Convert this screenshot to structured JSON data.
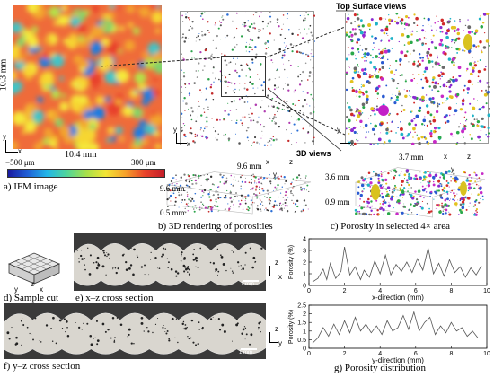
{
  "panels": {
    "a": {
      "caption": "a) IFM image",
      "dim_x": "10.4 mm",
      "dim_y": "10.3 mm",
      "scale_min": "−500 μm",
      "scale_max": "300 μm",
      "axis_x": "x",
      "axis_y": "y",
      "colorbar_colors": [
        "#1a1aa0",
        "#1f5fd6",
        "#22b7e8",
        "#4fd59a",
        "#a6e04a",
        "#f3e534",
        "#f6a12a",
        "#e9432a",
        "#c41d2a"
      ]
    },
    "b": {
      "caption": "b) 3D rendering of porosities",
      "dim_width": "9.6 mm",
      "dim_depth": "9.6 mm",
      "dim_height": "0.5 mm",
      "axis_x": "x",
      "axis_y": "y",
      "axis_z": "z"
    },
    "c": {
      "caption": "c) Porosity in selected 4× area",
      "dim_width": "3.7 mm",
      "dim_depth": "3.6 mm",
      "dim_height": "0.9 mm",
      "axis_x": "x",
      "axis_y": "y",
      "axis_z": "z"
    },
    "top_label": "Top Surface views",
    "views_label": "3D views",
    "d": {
      "caption": "d) Sample cut",
      "axis_x": "x",
      "axis_y": "y",
      "axis_z": "z"
    },
    "e": {
      "caption": "e) x–z cross section",
      "scale_bar": "1 mm",
      "axis_x": "x",
      "axis_z": "z"
    },
    "f": {
      "caption": "f) y–z cross section",
      "scale_bar": "1 mm",
      "axis_y": "y",
      "axis_z": "z"
    },
    "g": {
      "caption": "g) Porosity distribution"
    }
  },
  "chart_data": [
    {
      "type": "line",
      "xlabel": "x-direction (mm)",
      "ylabel": "Porosity (%)",
      "xlim": [
        0,
        10
      ],
      "ylim": [
        0,
        4
      ],
      "xticks": [
        0,
        2,
        4,
        6,
        8,
        10
      ],
      "yticks": [
        0,
        1,
        2,
        3,
        4
      ],
      "series": [
        {
          "x": [
            0.2,
            0.5,
            0.8,
            1.0,
            1.2,
            1.5,
            1.8,
            2.0,
            2.3,
            2.6,
            2.9,
            3.1,
            3.4,
            3.7,
            4.0,
            4.3,
            4.6,
            4.9,
            5.2,
            5.5,
            5.8,
            6.1,
            6.4,
            6.7,
            7.0,
            7.3,
            7.6,
            7.9,
            8.2,
            8.5,
            8.8,
            9.1,
            9.4,
            9.7
          ],
          "y": [
            0.3,
            0.6,
            1.4,
            0.5,
            1.9,
            0.6,
            1.2,
            3.3,
            0.9,
            1.6,
            0.5,
            1.3,
            0.7,
            2.1,
            1.0,
            2.6,
            0.9,
            1.8,
            1.2,
            2.0,
            1.1,
            2.3,
            1.3,
            3.2,
            1.0,
            1.9,
            0.8,
            2.2,
            1.1,
            1.6,
            0.7,
            1.5,
            0.9,
            1.7
          ]
        }
      ]
    },
    {
      "type": "line",
      "xlabel": "y-direction (mm)",
      "ylabel": "Porosity (%)",
      "xlim": [
        0,
        10
      ],
      "ylim": [
        0,
        2.5
      ],
      "xticks": [
        0,
        2,
        4,
        6,
        8,
        10
      ],
      "yticks": [
        0,
        0.5,
        1.0,
        1.5,
        2.0,
        2.5
      ],
      "series": [
        {
          "x": [
            0.2,
            0.5,
            0.8,
            1.1,
            1.4,
            1.7,
            2.0,
            2.3,
            2.6,
            2.9,
            3.2,
            3.5,
            3.8,
            4.1,
            4.4,
            4.7,
            5.0,
            5.3,
            5.6,
            5.9,
            6.2,
            6.5,
            6.8,
            7.1,
            7.4,
            7.7,
            8.0,
            8.3,
            8.6,
            8.9,
            9.2,
            9.5
          ],
          "y": [
            0.3,
            0.6,
            1.2,
            0.7,
            1.4,
            0.8,
            1.6,
            0.9,
            1.8,
            1.0,
            1.4,
            0.9,
            1.3,
            0.8,
            1.6,
            1.0,
            1.2,
            1.9,
            1.1,
            2.1,
            1.0,
            1.5,
            1.8,
            0.8,
            1.3,
            0.9,
            1.5,
            1.0,
            1.2,
            0.7,
            1.0,
            0.6
          ]
        }
      ]
    }
  ]
}
